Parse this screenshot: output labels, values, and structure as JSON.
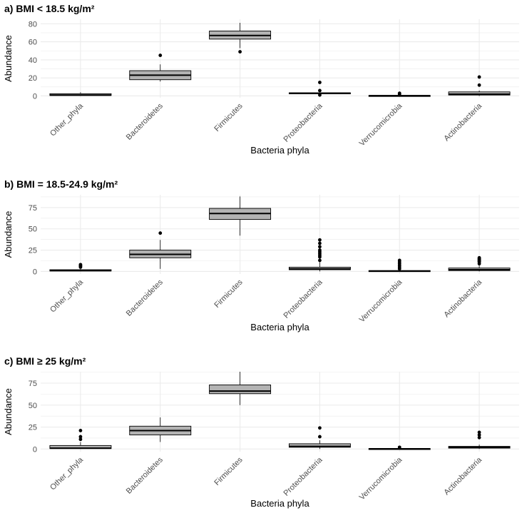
{
  "chart_data": [
    {
      "type": "boxplot",
      "title": "a) BMI < 18.5 kg/m²",
      "xlabel": "Bacteria phyla",
      "ylabel": "Abundance",
      "ylim": [
        -2,
        85
      ],
      "yticks": [
        0,
        20,
        40,
        60,
        80
      ],
      "categories": [
        "Other_phyla",
        "Bacteroidetes",
        "Firmicutes",
        "Proteobacteria",
        "Verrucomicrobia",
        "Actinobacteria"
      ],
      "boxes": [
        {
          "whisker_low": 0,
          "q1": 0.5,
          "median": 1,
          "q3": 2.5,
          "whisker_high": 4,
          "outliers": []
        },
        {
          "whisker_low": 16,
          "q1": 18,
          "median": 23,
          "q3": 28,
          "whisker_high": 35,
          "outliers": [
            45
          ]
        },
        {
          "whisker_low": 53,
          "q1": 63,
          "median": 67,
          "q3": 72,
          "whisker_high": 81,
          "outliers": [
            49
          ]
        },
        {
          "whisker_low": 2,
          "q1": 2.5,
          "median": 3,
          "q3": 3.5,
          "whisker_high": 4,
          "outliers": [
            15,
            6,
            1
          ]
        },
        {
          "whisker_low": 0,
          "q1": 0.1,
          "median": 0.3,
          "q3": 0.6,
          "whisker_high": 1,
          "outliers": [
            2,
            3
          ]
        },
        {
          "whisker_low": 0,
          "q1": 1,
          "median": 2,
          "q3": 4.5,
          "whisker_high": 6,
          "outliers": [
            21,
            12
          ]
        }
      ]
    },
    {
      "type": "boxplot",
      "title": "b) BMI = 18.5-24.9 kg/m²",
      "xlabel": "Bacteria phyla",
      "ylabel": "Abundance",
      "ylim": [
        -3,
        90
      ],
      "yticks": [
        0,
        25,
        50,
        75
      ],
      "categories": [
        "Other_phyla",
        "Bacteroidetes",
        "Firmicutes",
        "Proteobacteria",
        "Verrucomicrobia",
        "Actinobacteria"
      ],
      "boxes": [
        {
          "whisker_low": 0,
          "q1": 0.5,
          "median": 1,
          "q3": 2,
          "whisker_high": 3,
          "outliers": [
            5,
            6,
            7,
            8
          ]
        },
        {
          "whisker_low": 3,
          "q1": 16,
          "median": 20,
          "q3": 25,
          "whisker_high": 37,
          "outliers": [
            45
          ]
        },
        {
          "whisker_low": 42,
          "q1": 61,
          "median": 68,
          "q3": 74,
          "whisker_high": 88,
          "outliers": []
        },
        {
          "whisker_low": 0,
          "q1": 2,
          "median": 3,
          "q3": 5,
          "whisker_high": 11,
          "outliers": [
            13,
            17,
            19,
            21,
            23,
            25,
            29,
            33,
            37
          ]
        },
        {
          "whisker_low": 0,
          "q1": 0,
          "median": 0.5,
          "q3": 1,
          "whisker_high": 2,
          "outliers": [
            3,
            5,
            7,
            9,
            11,
            13
          ]
        },
        {
          "whisker_low": 0,
          "q1": 1,
          "median": 2,
          "q3": 4,
          "whisker_high": 7,
          "outliers": [
            9,
            11,
            12,
            13,
            14,
            15,
            16
          ]
        }
      ]
    },
    {
      "type": "boxplot",
      "title": "c) BMI ≥ 25 kg/m²",
      "xlabel": "Bacteria phyla",
      "ylabel": "Abundance",
      "ylim": [
        -3,
        88
      ],
      "yticks": [
        0,
        25,
        50,
        75
      ],
      "categories": [
        "Other_phyla",
        "Bacteroidetes",
        "Firmicutes",
        "Proteobacteria",
        "Verrucomicrobia",
        "Actinobacteria"
      ],
      "boxes": [
        {
          "whisker_low": 0,
          "q1": 0.5,
          "median": 1,
          "q3": 4,
          "whisker_high": 8,
          "outliers": [
            11,
            14,
            21
          ]
        },
        {
          "whisker_low": 8,
          "q1": 16,
          "median": 21,
          "q3": 26,
          "whisker_high": 36,
          "outliers": []
        },
        {
          "whisker_low": 50,
          "q1": 63,
          "median": 66,
          "q3": 73,
          "whisker_high": 88,
          "outliers": []
        },
        {
          "whisker_low": 0,
          "q1": 2,
          "median": 3,
          "q3": 6,
          "whisker_high": 10,
          "outliers": [
            14,
            24
          ]
        },
        {
          "whisker_low": 0,
          "q1": 0.1,
          "median": 0.3,
          "q3": 0.6,
          "whisker_high": 1,
          "outliers": [
            2
          ]
        },
        {
          "whisker_low": 0,
          "q1": 1,
          "median": 2,
          "q3": 3,
          "whisker_high": 5,
          "outliers": [
            13,
            16,
            19
          ]
        }
      ]
    }
  ],
  "style": {
    "box_fill": "#b3b3b3",
    "grid_color": "#ebebeb",
    "line_color": "#000000",
    "tick_color": "#4d4d4d"
  }
}
